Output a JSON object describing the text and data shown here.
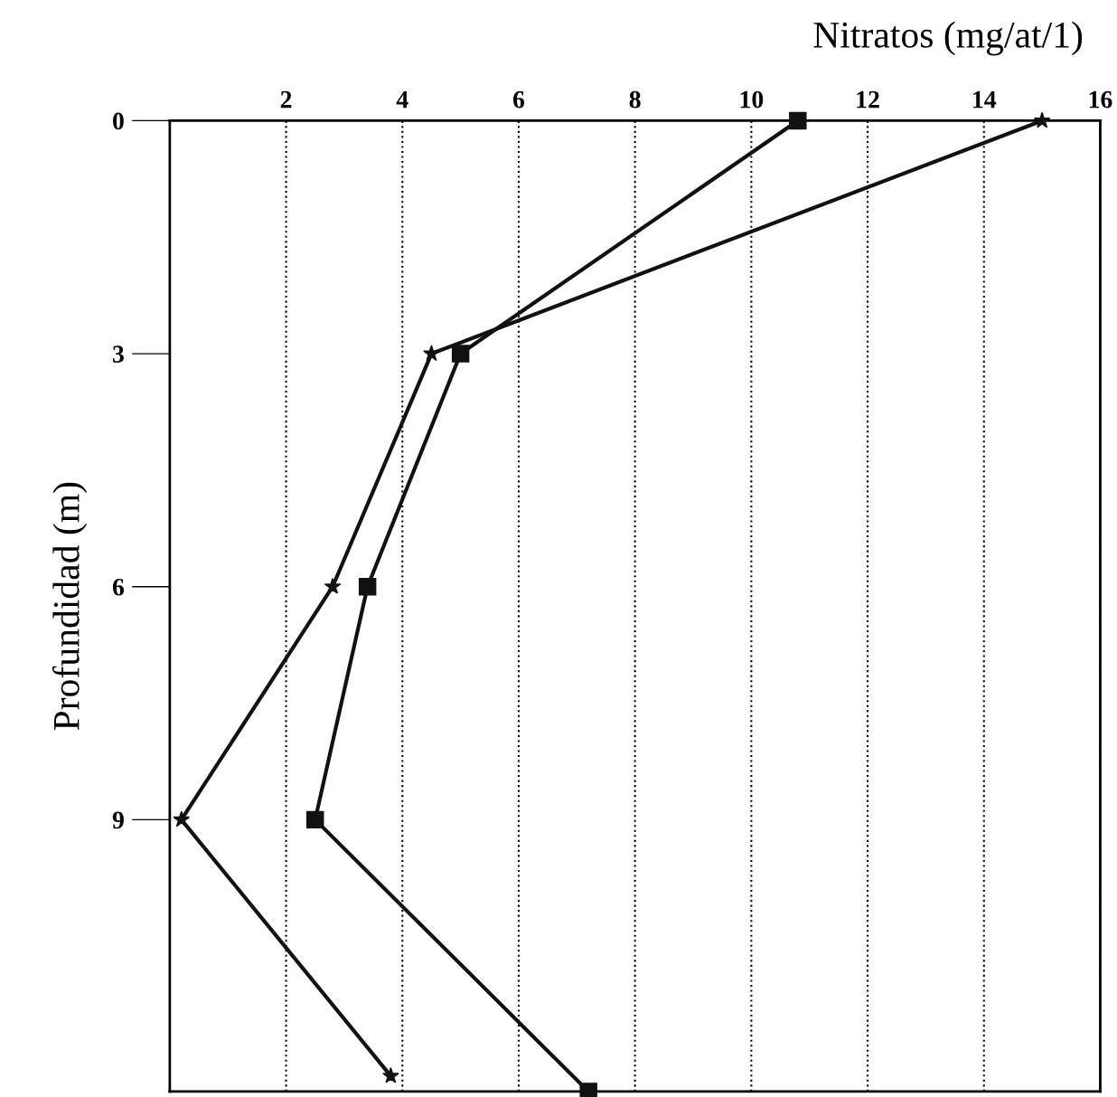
{
  "chart_data": {
    "type": "line",
    "title": "Nitratos (mg/at/1)",
    "ylabel": "Profundidad (m)",
    "series": [
      {
        "color": "#111111",
        "marker": "square",
        "x": [
          10.8,
          5.0,
          3.4,
          2.5,
          7.2
        ],
        "values": [
          0,
          3,
          6,
          9,
          12.5
        ]
      },
      {
        "color": "#111111",
        "marker": "star",
        "x": [
          15.0,
          4.5,
          2.8,
          0.2,
          3.8
        ],
        "values": [
          0,
          3,
          6,
          9,
          12.3
        ]
      }
    ],
    "xlim": [
      0,
      16
    ],
    "xticks": [
      2,
      4,
      6,
      8,
      10,
      12,
      14,
      16
    ],
    "ylim": [
      12.5,
      0
    ],
    "yticks": [
      0,
      3,
      6,
      9
    ],
    "grid": "x",
    "line_style": "solid"
  }
}
